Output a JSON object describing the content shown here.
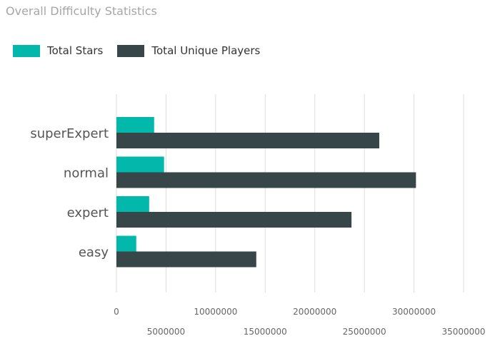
{
  "title": "Overall Difficulty Statistics",
  "colors": {
    "total_stars": "#01b8aa",
    "total_unique_players": "#374649",
    "gridline": "#dddddd",
    "tick_label": "#666666",
    "category_label": "#555555"
  },
  "legend": [
    {
      "name": "Total Stars",
      "color": "#01b8aa"
    },
    {
      "name": "Total Unique Players",
      "color": "#374649"
    }
  ],
  "chart_data": {
    "type": "bar",
    "orientation": "horizontal",
    "title": "Overall Difficulty Statistics",
    "xlabel": "",
    "ylabel": "",
    "categories": [
      "superExpert",
      "normal",
      "expert",
      "easy"
    ],
    "series": [
      {
        "name": "Total Stars",
        "values": [
          3800000,
          4800000,
          3300000,
          2000000
        ]
      },
      {
        "name": "Total Unique Players",
        "values": [
          26500000,
          30200000,
          23700000,
          14100000
        ]
      }
    ],
    "xlim": [
      0,
      35000000
    ],
    "x_ticks": [
      "0",
      "5000000",
      "10000000",
      "15000000",
      "20000000",
      "25000000",
      "30000000",
      "35000000"
    ],
    "x_tick_values": [
      0,
      5000000,
      10000000,
      15000000,
      20000000,
      25000000,
      30000000,
      35000000
    ],
    "grid": true,
    "legend_position": "top-left"
  }
}
